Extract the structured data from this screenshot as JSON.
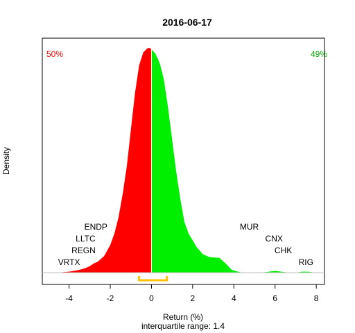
{
  "chart_data": {
    "type": "area",
    "title": "2016-06-17",
    "xlabel": "Return (%)",
    "ylabel": "Density",
    "subtitle": "interquartile range: 1.4",
    "xlim": [
      -5.3,
      8.4
    ],
    "ylim": [
      0,
      0.5
    ],
    "xticks": [
      "-4",
      "-2",
      "0",
      "2",
      "4",
      "6",
      "8"
    ],
    "split_at": 0,
    "left_percent": "50%",
    "right_percent": "49%",
    "left_color": "#ff0000",
    "right_color": "#00ee00",
    "iqr_color": "#ffc000",
    "iqr": [
      -0.6,
      0.75
    ],
    "density": {
      "x": [
        -4.6,
        -4.0,
        -3.5,
        -3.2,
        -3.0,
        -2.8,
        -2.6,
        -2.3,
        -2.0,
        -1.8,
        -1.6,
        -1.4,
        -1.2,
        -1.0,
        -0.8,
        -0.6,
        -0.4,
        -0.2,
        -0.1,
        0.0,
        0.2,
        0.4,
        0.6,
        0.8,
        1.0,
        1.2,
        1.4,
        1.6,
        1.8,
        2.0,
        2.2,
        2.5,
        2.8,
        3.0,
        3.3,
        3.6,
        3.9,
        4.3,
        4.8,
        5.3,
        5.7,
        6.0,
        6.3,
        6.7,
        7.0,
        7.3,
        7.6,
        8.0
      ],
      "y": [
        0.0,
        0.002,
        0.006,
        0.01,
        0.014,
        0.02,
        0.024,
        0.036,
        0.06,
        0.085,
        0.12,
        0.17,
        0.23,
        0.31,
        0.39,
        0.45,
        0.478,
        0.487,
        0.488,
        0.485,
        0.475,
        0.455,
        0.42,
        0.36,
        0.29,
        0.22,
        0.16,
        0.11,
        0.085,
        0.07,
        0.055,
        0.04,
        0.034,
        0.033,
        0.032,
        0.02,
        0.006,
        0.001,
        0.0,
        0.0,
        0.002,
        0.004,
        0.002,
        0.0,
        0.0,
        0.002,
        0.002,
        0.0
      ]
    },
    "annotations": [
      {
        "label": "VRTX",
        "x": -4.0,
        "level": 0
      },
      {
        "label": "REGN",
        "x": -3.3,
        "level": 1
      },
      {
        "label": "LLTC",
        "x": -3.2,
        "level": 2
      },
      {
        "label": "ENDP",
        "x": -2.7,
        "level": 3
      },
      {
        "label": "MUR",
        "x": 4.75,
        "level": 3
      },
      {
        "label": "CNX",
        "x": 5.95,
        "level": 2
      },
      {
        "label": "CHK",
        "x": 6.4,
        "level": 1
      },
      {
        "label": "RIG",
        "x": 7.5,
        "level": 0
      }
    ]
  }
}
